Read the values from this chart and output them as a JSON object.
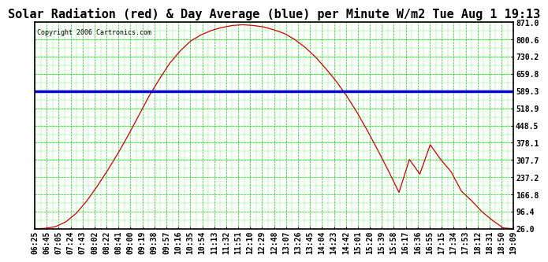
{
  "title": "Solar Radiation (red) & Day Average (blue) per Minute W/m2 Tue Aug 1 19:13",
  "copyright": "Copyright 2006 Cartronics.com",
  "plot_bg_color": "#ffffff",
  "outer_bg": "#ffffff",
  "grid_color": "#00dd00",
  "line_color": "#cc0000",
  "avg_line_color": "#0000cc",
  "avg_value": 589.3,
  "y_ticks": [
    26.0,
    96.4,
    166.8,
    237.2,
    307.7,
    378.1,
    448.5,
    518.9,
    589.3,
    659.8,
    730.2,
    800.6,
    871.0
  ],
  "y_tick_labels": [
    "26.0",
    "96.4",
    "166.8",
    "237.2",
    "307.7",
    "378.1",
    "448.5",
    "518.9",
    "589.3",
    "659.8",
    "730.2",
    "800.6",
    "871.0"
  ],
  "x_tick_labels": [
    "06:25",
    "06:45",
    "07:05",
    "07:24",
    "07:43",
    "08:02",
    "08:22",
    "08:41",
    "09:00",
    "09:19",
    "09:38",
    "09:57",
    "10:16",
    "10:35",
    "10:54",
    "11:13",
    "11:32",
    "11:51",
    "12:10",
    "12:29",
    "12:48",
    "13:07",
    "13:26",
    "13:45",
    "14:04",
    "14:23",
    "14:42",
    "15:01",
    "15:20",
    "15:39",
    "15:58",
    "16:17",
    "16:36",
    "16:55",
    "17:15",
    "17:34",
    "17:53",
    "18:12",
    "18:31",
    "18:50",
    "19:09"
  ],
  "solar_data_y": [
    26,
    28,
    35,
    55,
    90,
    140,
    200,
    265,
    335,
    410,
    490,
    570,
    640,
    705,
    755,
    795,
    820,
    838,
    850,
    858,
    861,
    858,
    852,
    840,
    825,
    800,
    768,
    728,
    680,
    628,
    568,
    500,
    425,
    345,
    262,
    175,
    310,
    250,
    370,
    310,
    260,
    180,
    140,
    95,
    60,
    30,
    26
  ],
  "ylim": [
    26.0,
    871.0
  ],
  "xlim": [
    0,
    40
  ],
  "title_fontsize": 11,
  "tick_fontsize": 7,
  "copyright_fontsize": 6,
  "spine_color": "#000000",
  "tick_color": "#000000",
  "avg_linewidth": 2.5,
  "data_linewidth": 0.9
}
